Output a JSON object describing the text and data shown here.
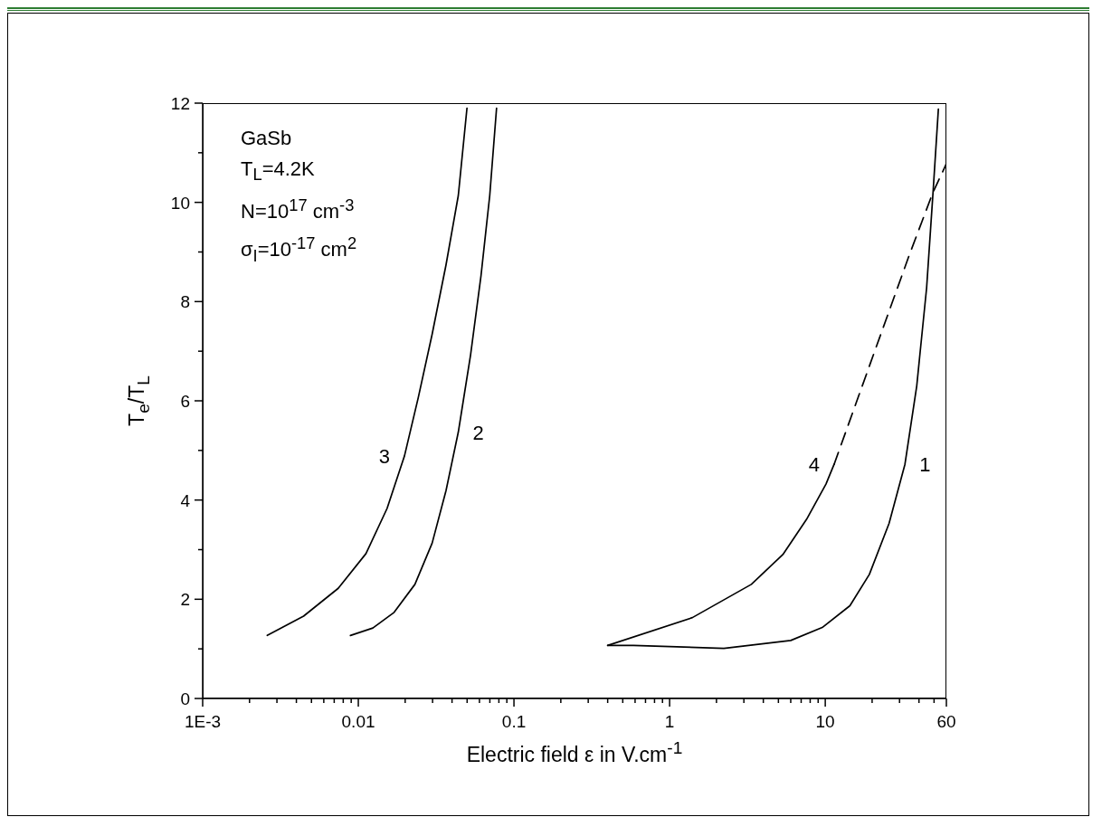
{
  "chart_data": {
    "type": "line",
    "xlabel": "Electric field ε in V.cm$^{-1}$",
    "ylabel": "T$_{e}$/T$_{L}$",
    "log": "x",
    "xlim": [
      0.001,
      60
    ],
    "ylim": [
      0,
      12
    ],
    "xticks": [
      {
        "value": 0.001,
        "label": "1E-3"
      },
      {
        "value": 0.002,
        "label": null
      },
      {
        "value": 0.003,
        "label": null
      },
      {
        "value": 0.004,
        "label": null
      },
      {
        "value": 0.005,
        "label": null
      },
      {
        "value": 0.006,
        "label": null
      },
      {
        "value": 0.007,
        "label": null
      },
      {
        "value": 0.008,
        "label": null
      },
      {
        "value": 0.009,
        "label": null
      },
      {
        "value": 0.01,
        "label": "0.01"
      },
      {
        "value": 0.02,
        "label": null
      },
      {
        "value": 0.03,
        "label": null
      },
      {
        "value": 0.04,
        "label": null
      },
      {
        "value": 0.05,
        "label": null
      },
      {
        "value": 0.06,
        "label": null
      },
      {
        "value": 0.07,
        "label": null
      },
      {
        "value": 0.08,
        "label": null
      },
      {
        "value": 0.09,
        "label": null
      },
      {
        "value": 0.1,
        "label": "0.1"
      },
      {
        "value": 0.2,
        "label": null
      },
      {
        "value": 0.3,
        "label": null
      },
      {
        "value": 0.4,
        "label": null
      },
      {
        "value": 0.5,
        "label": null
      },
      {
        "value": 0.6,
        "label": null
      },
      {
        "value": 0.7,
        "label": null
      },
      {
        "value": 0.8,
        "label": null
      },
      {
        "value": 0.9,
        "label": null
      },
      1,
      {
        "value": 2,
        "label": null
      },
      {
        "value": 3,
        "label": null
      },
      {
        "value": 4,
        "label": null
      },
      {
        "value": 5,
        "label": null
      },
      {
        "value": 6,
        "label": null
      },
      {
        "value": 7,
        "label": null
      },
      {
        "value": 8,
        "label": null
      },
      {
        "value": 9,
        "label": null
      },
      10,
      {
        "value": 20,
        "label": null
      },
      {
        "value": 30,
        "label": null
      },
      {
        "value": 40,
        "label": null
      },
      {
        "value": 50,
        "label": null
      },
      60
    ],
    "yticks": [
      0,
      {
        "value": 1,
        "label": null
      },
      2,
      {
        "value": 3,
        "label": null
      },
      4,
      {
        "value": 5,
        "label": null
      },
      6,
      {
        "value": 7,
        "label": null
      },
      8,
      {
        "value": 9,
        "label": null
      },
      10,
      {
        "value": 11,
        "label": null
      },
      12
    ],
    "marker": "none",
    "series": [
      {
        "name": "1",
        "color": "#000000",
        "line_style": "solid",
        "x": [
          0.4,
          0.585,
          2.23,
          6.0,
          9.56,
          14.4,
          19.2,
          25.7,
          32.5,
          38.7,
          44.8,
          49.4,
          53.3
        ],
        "values": [
          1.07,
          1.07,
          1.01,
          1.17,
          1.43,
          1.87,
          2.5,
          3.53,
          4.72,
          6.3,
          8.28,
          10.26,
          11.88
        ]
      },
      {
        "name": "2",
        "color": "#000000",
        "line_style": "solid",
        "x": [
          0.0089,
          0.0124,
          0.0169,
          0.0231,
          0.0298,
          0.0366,
          0.0439,
          0.0526,
          0.0614,
          0.0699,
          0.0773
        ],
        "values": [
          1.27,
          1.42,
          1.73,
          2.3,
          3.13,
          4.19,
          5.37,
          6.92,
          8.52,
          10.14,
          11.9
        ]
      },
      {
        "name": "3",
        "color": "#000000",
        "line_style": "solid",
        "x": [
          0.0026,
          0.00445,
          0.00743,
          0.0112,
          0.0153,
          0.0198,
          0.0243,
          0.0298,
          0.0366,
          0.0439,
          0.0499
        ],
        "values": [
          1.27,
          1.66,
          2.22,
          2.92,
          3.83,
          4.89,
          6.07,
          7.34,
          8.74,
          10.14,
          11.9
        ]
      },
      {
        "name": "4",
        "color": "#000000",
        "line_style": "solid",
        "x": [
          0.4,
          1.4,
          3.35,
          5.34,
          7.58,
          10.1,
          11.4
        ],
        "values": [
          1.07,
          1.63,
          2.3,
          2.9,
          3.61,
          4.32,
          4.72
        ]
      },
      {
        "color": "#000000",
        "line_style": "dashed",
        "x": [
          11.4,
          19.2,
          34.4,
          48.9,
          60
        ],
        "values": [
          4.72,
          6.7,
          8.91,
          10.18,
          10.78
        ]
      }
    ],
    "annotations": [
      "GaSb",
      "T$_{L}$=4.2K",
      "N=10$^{17}$ cm$^{-3}$",
      "σ$_{I}$=10$^{-17}$ cm$^{2}$"
    ]
  }
}
